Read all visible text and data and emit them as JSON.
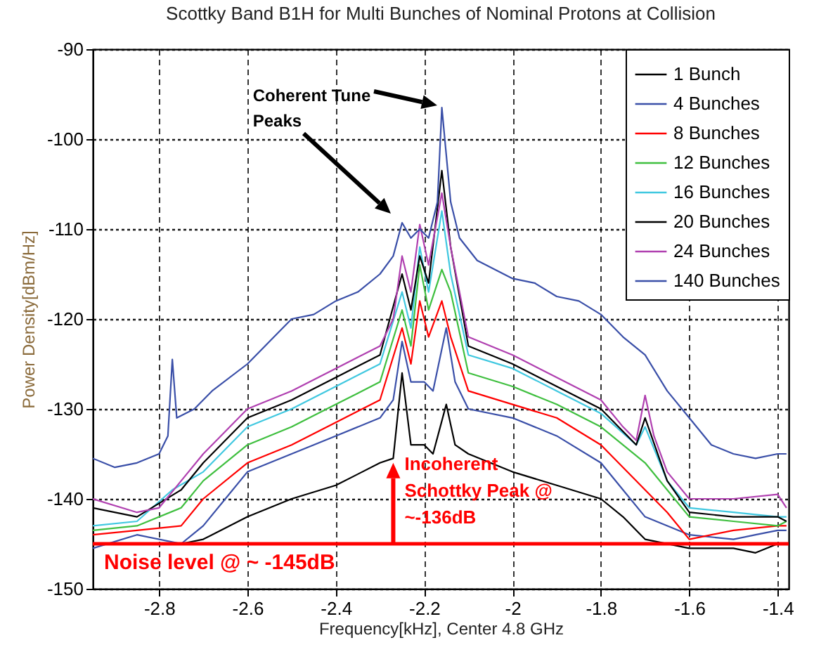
{
  "chart_data": {
    "type": "line",
    "title": "Scottky Band B1H for Multi Bunches of Nominal Protons at Collision",
    "xlabel": "Frequency[kHz], Center 4.8 GHz",
    "ylabel": "Power Density[dBm/Hz]",
    "xlim": [
      -2.95,
      -1.375
    ],
    "ylim": [
      -150,
      -90
    ],
    "xticks": [
      -2.8,
      -2.6,
      -2.4,
      -2.2,
      -2,
      -1.8,
      -1.6,
      -1.4
    ],
    "yticks": [
      -150,
      -140,
      -130,
      -120,
      -110,
      -100,
      -90
    ],
    "grid": true,
    "legend": "top right",
    "line_style": "solid",
    "marker": "none",
    "series": [
      {
        "name": "1 Bunch",
        "color": "#000000",
        "x": [
          -2.95,
          -2.85,
          -2.75,
          -2.7,
          -2.6,
          -2.5,
          -2.4,
          -2.3,
          -2.27,
          -2.25,
          -2.23,
          -2.2,
          -2.18,
          -2.15,
          -2.13,
          -2.1,
          -2.0,
          -1.9,
          -1.8,
          -1.75,
          -1.7,
          -1.6,
          -1.5,
          -1.45,
          -1.4,
          -1.38
        ],
        "values": [
          -145,
          -145,
          -145,
          -144.5,
          -142,
          -140,
          -138.5,
          -136,
          -135.5,
          -126,
          -134,
          -134,
          -135,
          -129.5,
          -134,
          -135,
          -137,
          -138.5,
          -140,
          -142,
          -144.5,
          -145.5,
          -145.5,
          -146,
          -145,
          -145
        ]
      },
      {
        "name": "4 Bunches",
        "color": "#3a4fa8",
        "x": [
          -2.95,
          -2.85,
          -2.75,
          -2.7,
          -2.65,
          -2.6,
          -2.5,
          -2.4,
          -2.3,
          -2.27,
          -2.25,
          -2.23,
          -2.2,
          -2.18,
          -2.15,
          -2.13,
          -2.1,
          -2.0,
          -1.9,
          -1.8,
          -1.75,
          -1.7,
          -1.6,
          -1.5,
          -1.45,
          -1.4,
          -1.38
        ],
        "values": [
          -145.5,
          -144,
          -145,
          -143,
          -140,
          -137,
          -135,
          -133,
          -131,
          -129,
          -122.5,
          -127,
          -127,
          -128,
          -121,
          -127,
          -130,
          -131,
          -133,
          -136,
          -139,
          -142,
          -144,
          -144.5,
          -144,
          -143.5,
          -143.5
        ]
      },
      {
        "name": "8 Bunches",
        "color": "#ff0000",
        "x": [
          -2.95,
          -2.85,
          -2.75,
          -2.7,
          -2.6,
          -2.5,
          -2.4,
          -2.3,
          -2.25,
          -2.23,
          -2.21,
          -2.19,
          -2.16,
          -2.14,
          -2.1,
          -2.0,
          -1.9,
          -1.8,
          -1.7,
          -1.65,
          -1.6,
          -1.5,
          -1.4,
          -1.38
        ],
        "values": [
          -144,
          -143.5,
          -143,
          -140,
          -136,
          -134,
          -131.5,
          -129,
          -121,
          -125,
          -118,
          -122,
          -118,
          -122,
          -128,
          -129.5,
          -131,
          -134,
          -139,
          -141.5,
          -144.5,
          -143.5,
          -143,
          -143
        ]
      },
      {
        "name": "12 Bunches",
        "color": "#3fbf3f",
        "x": [
          -2.95,
          -2.85,
          -2.75,
          -2.7,
          -2.6,
          -2.5,
          -2.4,
          -2.3,
          -2.25,
          -2.23,
          -2.21,
          -2.19,
          -2.16,
          -2.14,
          -2.1,
          -2.0,
          -1.9,
          -1.8,
          -1.7,
          -1.65,
          -1.6,
          -1.5,
          -1.4,
          -1.38
        ],
        "values": [
          -143.5,
          -143,
          -141,
          -138,
          -134,
          -132,
          -129.5,
          -127,
          -119,
          -123,
          -114,
          -119,
          -114.5,
          -117,
          -126,
          -127.5,
          -129.5,
          -132,
          -136,
          -139,
          -142,
          -142.5,
          -143,
          -142.5
        ]
      },
      {
        "name": "16 Bunches",
        "color": "#40c8e0",
        "x": [
          -2.95,
          -2.85,
          -2.77,
          -2.7,
          -2.6,
          -2.5,
          -2.4,
          -2.3,
          -2.25,
          -2.23,
          -2.21,
          -2.19,
          -2.16,
          -2.14,
          -2.1,
          -2.0,
          -1.9,
          -1.8,
          -1.72,
          -1.7,
          -1.65,
          -1.6,
          -1.5,
          -1.4,
          -1.38
        ],
        "values": [
          -143,
          -142.5,
          -139,
          -137,
          -132,
          -130,
          -127.5,
          -125,
          -117,
          -121,
          -112,
          -117,
          -108,
          -115,
          -124,
          -125.5,
          -128,
          -130.5,
          -134,
          -132,
          -138,
          -141,
          -141.5,
          -142,
          -142
        ]
      },
      {
        "name": "20 Bunches",
        "color": "#000000",
        "x": [
          -2.95,
          -2.85,
          -2.75,
          -2.7,
          -2.6,
          -2.5,
          -2.4,
          -2.3,
          -2.25,
          -2.23,
          -2.21,
          -2.19,
          -2.16,
          -2.14,
          -2.1,
          -2.0,
          -1.9,
          -1.8,
          -1.72,
          -1.7,
          -1.65,
          -1.6,
          -1.5,
          -1.4,
          -1.38
        ],
        "values": [
          -141,
          -142,
          -139,
          -136,
          -131,
          -129,
          -126.5,
          -124,
          -115,
          -119,
          -113,
          -116,
          -103.5,
          -112,
          -123,
          -125,
          -127.5,
          -130,
          -134,
          -131,
          -138,
          -141.5,
          -142,
          -142,
          -142.5
        ]
      },
      {
        "name": "24 Bunches",
        "color": "#b040b0",
        "x": [
          -2.95,
          -2.85,
          -2.8,
          -2.75,
          -2.7,
          -2.6,
          -2.5,
          -2.4,
          -2.3,
          -2.27,
          -2.25,
          -2.23,
          -2.21,
          -2.19,
          -2.16,
          -2.14,
          -2.1,
          -2.0,
          -1.9,
          -1.8,
          -1.75,
          -1.72,
          -1.7,
          -1.68,
          -1.65,
          -1.6,
          -1.5,
          -1.4,
          -1.38
        ],
        "values": [
          -140,
          -141.5,
          -141,
          -138,
          -135,
          -130,
          -128,
          -125.5,
          -123,
          -120,
          -113,
          -117,
          -109.5,
          -114,
          -106,
          -112,
          -122,
          -124,
          -126.5,
          -129,
          -132,
          -133.5,
          -128.5,
          -133,
          -137,
          -140,
          -140,
          -139.5,
          -141
        ]
      },
      {
        "name": "140 Bunches",
        "color": "#3a4fa8",
        "x": [
          -2.95,
          -2.9,
          -2.85,
          -2.8,
          -2.78,
          -2.77,
          -2.76,
          -2.72,
          -2.68,
          -2.6,
          -2.55,
          -2.5,
          -2.45,
          -2.4,
          -2.35,
          -2.3,
          -2.27,
          -2.25,
          -2.23,
          -2.21,
          -2.19,
          -2.17,
          -2.16,
          -2.14,
          -2.12,
          -2.08,
          -2.0,
          -1.95,
          -1.9,
          -1.85,
          -1.8,
          -1.75,
          -1.7,
          -1.65,
          -1.6,
          -1.55,
          -1.5,
          -1.45,
          -1.4,
          -1.38
        ],
        "values": [
          -135.5,
          -136.5,
          -136,
          -135,
          -133,
          -124.5,
          -131,
          -130,
          -128,
          -125,
          -122.5,
          -120,
          -119.5,
          -118,
          -117,
          -115,
          -113,
          -109.3,
          -111,
          -110,
          -111,
          -107,
          -96.5,
          -107,
          -111,
          -113.5,
          -115.5,
          -116,
          -117.5,
          -118,
          -119.5,
          -122,
          -124,
          -128,
          -131,
          -134,
          -135,
          -135.5,
          -135,
          -135
        ]
      }
    ],
    "ref_lines": [
      {
        "axis": "y",
        "value": -145,
        "label": "Noise level @ ~ -145dB",
        "color": "#ff0000"
      }
    ],
    "annotations": [
      "Coherent Tune Peaks",
      {
        "text": "Incoherent Schottky Peak @ ~-136dB",
        "x": -2.27,
        "y": -136
      }
    ]
  }
}
